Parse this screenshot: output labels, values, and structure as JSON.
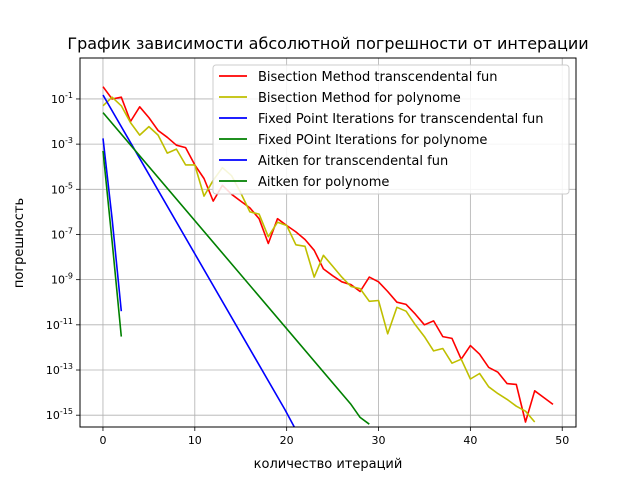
{
  "chart_data": {
    "type": "line",
    "title": "График зависимости абсолютной погрешности от интерации",
    "xlabel": "количество итераций",
    "ylabel": "погрешность",
    "xlim": [
      -2.5,
      51.5
    ],
    "ylim": [
      3e-16,
      6.5
    ],
    "yscale": "log",
    "grid": true,
    "legend_position": "top-right",
    "x_ticks": [
      0,
      10,
      20,
      30,
      40,
      50
    ],
    "x_tick_labels": [
      "0",
      "10",
      "20",
      "30",
      "40",
      "50"
    ],
    "y_ticks": [
      1e-15,
      1e-13,
      1e-11,
      1e-09,
      1e-07,
      1e-05,
      0.001,
      0.1
    ],
    "y_tick_labels": [
      "10^-15",
      "10^-13",
      "10^-11",
      "10^-9",
      "10^-7",
      "10^-5",
      "10^-3",
      "10^-1"
    ],
    "series": [
      {
        "name": "Bisection Method transcendental fun",
        "color": "#ff0000",
        "x": [
          0,
          1,
          2,
          3,
          4,
          5,
          6,
          7,
          8,
          9,
          10,
          11,
          12,
          13,
          14,
          15,
          16,
          17,
          18,
          19,
          20,
          21,
          22,
          23,
          24,
          25,
          26,
          27,
          28,
          29,
          30,
          31,
          32,
          33,
          34,
          35,
          36,
          37,
          38,
          39,
          40,
          41,
          42,
          43,
          44,
          45,
          46,
          47,
          48,
          49
        ],
        "y": [
          0.35,
          0.1,
          0.12,
          0.01,
          0.045,
          0.015,
          0.004,
          0.002,
          0.0009,
          0.0007,
          0.00012,
          3e-05,
          3e-06,
          1.5e-05,
          6e-06,
          3e-06,
          1.5e-06,
          5e-07,
          4e-08,
          5e-07,
          2.5e-07,
          1.3e-07,
          6e-08,
          2e-08,
          3e-09,
          1.5e-09,
          8e-10,
          6e-10,
          3e-10,
          1.3e-09,
          8e-10,
          3e-10,
          1e-10,
          8e-11,
          3e-11,
          1e-11,
          1.5e-11,
          3e-12,
          2.5e-12,
          3e-13,
          1.2e-12,
          5e-13,
          1.3e-13,
          8e-14,
          2.5e-14,
          2.3e-14,
          5e-16,
          1.2e-14,
          6e-15,
          3e-15
        ]
      },
      {
        "name": "Bisection Method for polynome",
        "color": "#bfbf00",
        "x": [
          0,
          1,
          2,
          3,
          4,
          5,
          6,
          7,
          8,
          9,
          10,
          11,
          12,
          13,
          14,
          15,
          16,
          17,
          18,
          19,
          20,
          21,
          22,
          23,
          24,
          25,
          26,
          27,
          28,
          29,
          30,
          31,
          32,
          33,
          34,
          35,
          36,
          37,
          38,
          39,
          40,
          41,
          42,
          43,
          44,
          45,
          46,
          47
        ],
        "y": [
          0.05,
          0.12,
          0.05,
          0.009,
          0.0025,
          0.006,
          0.0025,
          0.0004,
          0.0006,
          0.00012,
          0.00012,
          5e-06,
          2.5e-05,
          9e-05,
          4e-05,
          7e-06,
          1e-06,
          8e-07,
          8e-08,
          3.5e-07,
          2.5e-07,
          3.5e-08,
          3e-08,
          1.3e-09,
          1.2e-08,
          4e-09,
          1.3e-09,
          5e-10,
          4e-10,
          1.1e-10,
          1.2e-10,
          4e-12,
          6e-11,
          4e-11,
          1e-11,
          3e-12,
          7e-13,
          9e-13,
          2e-13,
          3e-13,
          4e-14,
          7e-14,
          1.8e-14,
          9e-15,
          5e-15,
          2.5e-15,
          1.5e-15,
          5e-16
        ]
      },
      {
        "name": "Fixed Point Iterations for transcendental fun",
        "color": "#0000ff",
        "x": [
          0,
          19.8,
          21
        ],
        "y": [
          0.15,
          1.8e-15,
          2.2e-16
        ]
      },
      {
        "name": "Fixed POint Iterations for polynome",
        "color": "#008000",
        "x": [
          0,
          27,
          28,
          29
        ],
        "y": [
          0.025,
          3e-15,
          8e-16,
          4e-16
        ]
      },
      {
        "name": "Aitken for transcendental fun",
        "color": "#0000ff",
        "x": [
          0,
          1,
          2
        ],
        "y": [
          0.0018,
          5e-07,
          4e-11
        ]
      },
      {
        "name": "Aitken for polynome",
        "color": "#008000",
        "x": [
          0,
          1,
          2
        ],
        "y": [
          0.0005,
          5e-08,
          3e-12
        ]
      }
    ]
  }
}
